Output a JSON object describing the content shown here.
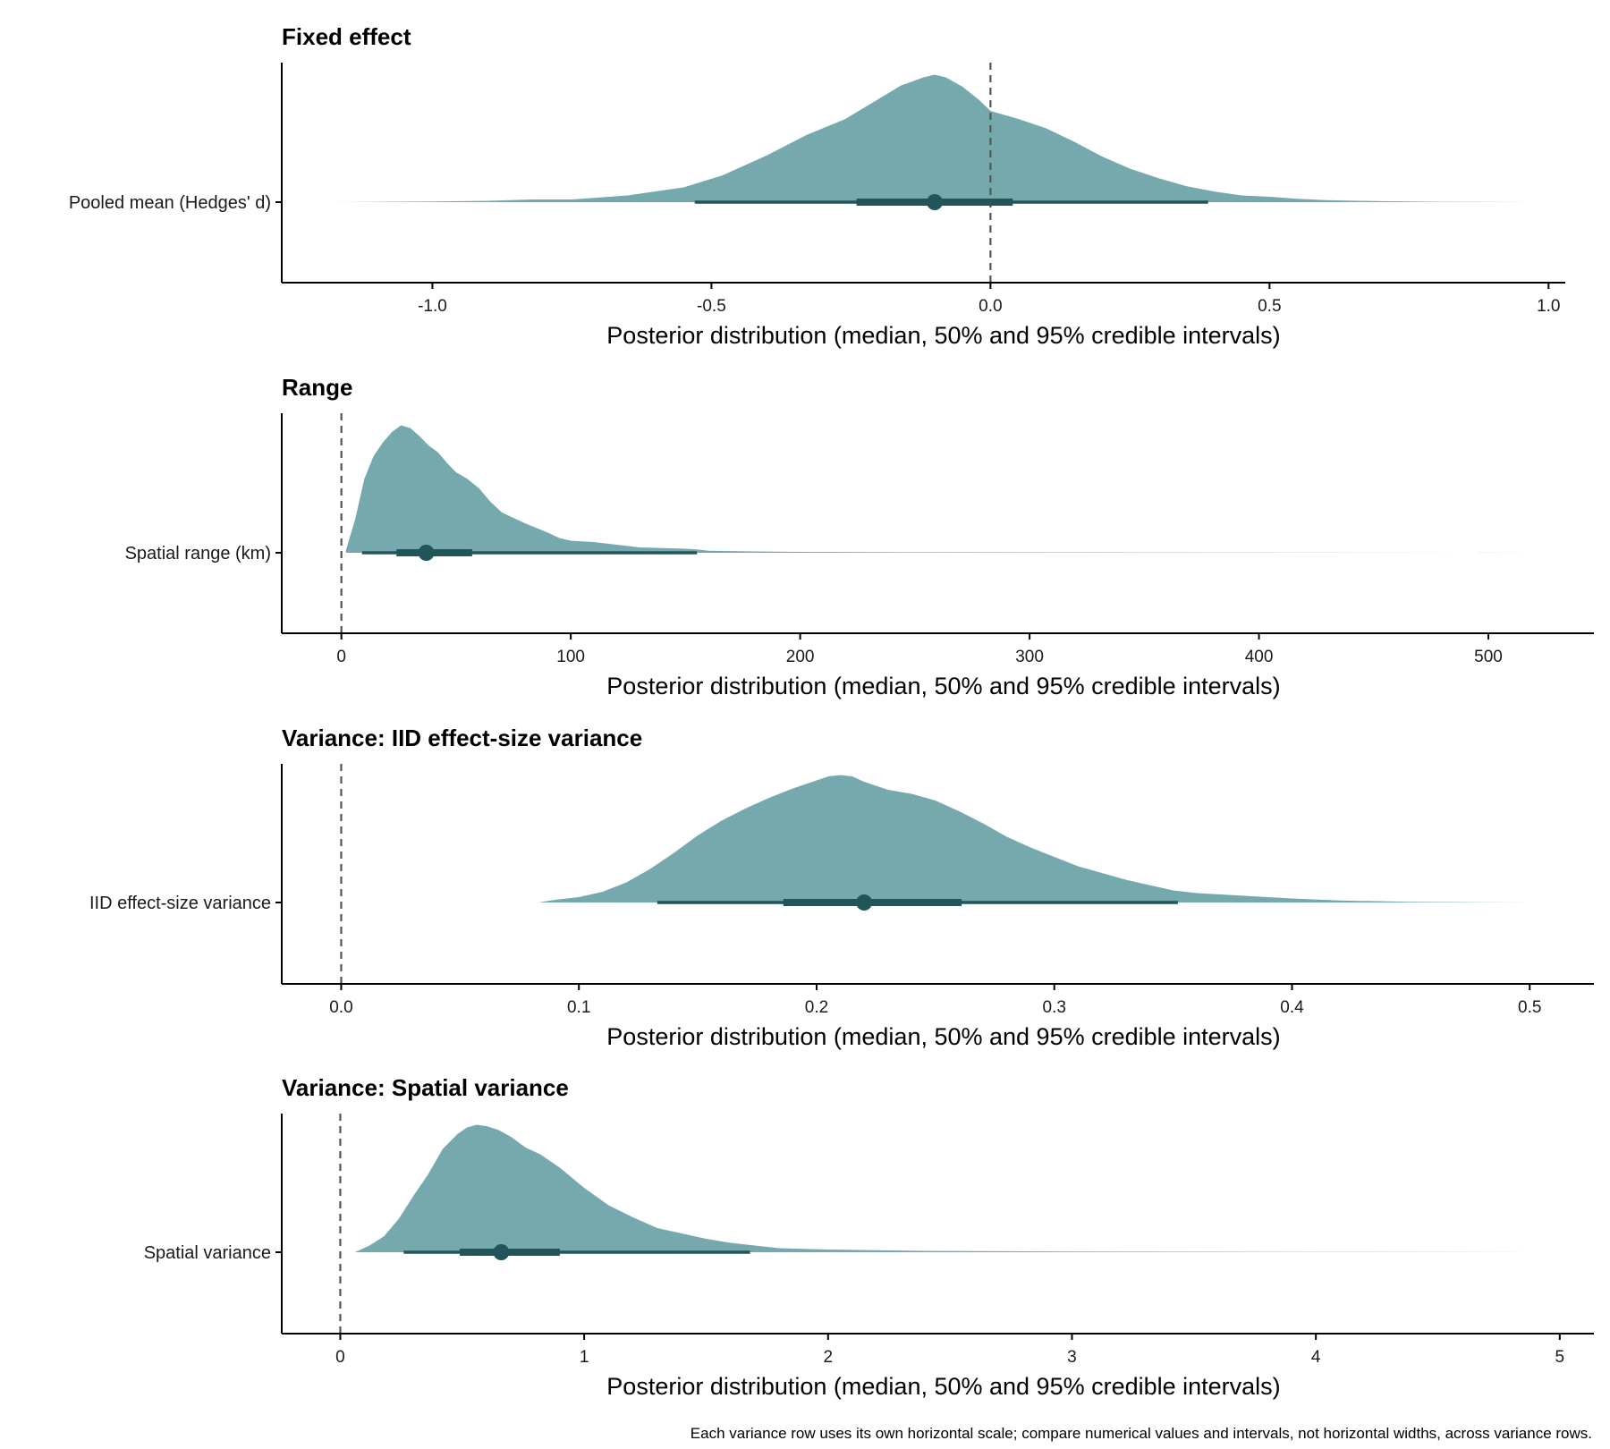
{
  "colors": {
    "density_fill": "#76a9ae",
    "interval": "#21555a",
    "reference_line": "#555555",
    "axis": "#000000"
  },
  "caption": "Each variance row uses its own horizontal scale; compare numerical values and intervals, not horizontal widths, across variance rows.",
  "chart_data": [
    {
      "type": "density",
      "title": "Fixed effect",
      "row_label": "Pooled mean (Hedges' d)",
      "xlabel": "Posterior distribution (median, 50% and 95% credible intervals)",
      "xlim": [
        -1.27,
        1.03
      ],
      "ticks": [
        -1.0,
        -0.5,
        0.0,
        0.5,
        1.0
      ],
      "tick_labels": [
        "-1.0",
        "-0.5",
        "0.0",
        "0.5",
        "1.0"
      ],
      "reference_x": 0.0,
      "median": -0.1,
      "ci50": [
        -0.24,
        0.04
      ],
      "ci95": [
        -0.53,
        0.39
      ],
      "density": {
        "x": [
          -1.18,
          -1.0,
          -0.9,
          -0.82,
          -0.75,
          -0.65,
          -0.55,
          -0.48,
          -0.4,
          -0.33,
          -0.26,
          -0.2,
          -0.16,
          -0.12,
          -0.1,
          -0.08,
          -0.05,
          -0.02,
          0.0,
          0.05,
          0.1,
          0.15,
          0.2,
          0.25,
          0.3,
          0.35,
          0.4,
          0.45,
          0.5,
          0.55,
          0.6,
          0.7,
          0.8,
          0.97
        ],
        "y": [
          0.0,
          0.005,
          0.01,
          0.02,
          0.02,
          0.05,
          0.11,
          0.2,
          0.35,
          0.5,
          0.62,
          0.77,
          0.87,
          0.93,
          0.95,
          0.93,
          0.86,
          0.76,
          0.68,
          0.62,
          0.55,
          0.45,
          0.34,
          0.25,
          0.18,
          0.12,
          0.08,
          0.05,
          0.04,
          0.025,
          0.015,
          0.007,
          0.003,
          0.0
        ]
      }
    },
    {
      "type": "density",
      "title": "Range",
      "row_label": "Spatial range (km)",
      "xlabel": "Posterior distribution (median, 50% and 95% credible intervals)",
      "xlim": [
        -26,
        546
      ],
      "ticks": [
        0,
        100,
        200,
        300,
        400,
        500
      ],
      "tick_labels": [
        "0",
        "100",
        "200",
        "300",
        "400",
        "500"
      ],
      "reference_x": 0,
      "median": 37,
      "ci50": [
        24,
        57
      ],
      "ci95": [
        9,
        155
      ],
      "density": {
        "x": [
          2,
          6,
          10,
          14,
          18,
          22,
          26,
          30,
          34,
          38,
          42,
          46,
          50,
          55,
          60,
          65,
          70,
          80,
          90,
          95,
          100,
          110,
          120,
          130,
          150,
          155,
          160,
          180,
          200,
          250,
          300,
          400,
          520
        ],
        "y": [
          0.02,
          0.25,
          0.55,
          0.72,
          0.82,
          0.9,
          0.95,
          0.93,
          0.87,
          0.8,
          0.75,
          0.67,
          0.6,
          0.55,
          0.48,
          0.38,
          0.3,
          0.22,
          0.15,
          0.11,
          0.09,
          0.08,
          0.06,
          0.04,
          0.03,
          0.025,
          0.015,
          0.01,
          0.007,
          0.004,
          0.003,
          0.002,
          0.0
        ]
      }
    },
    {
      "type": "density",
      "title": "Variance: IID effect-size variance",
      "row_label": "IID effect-size variance",
      "xlabel": "Posterior distribution (median, 50% and 95% credible intervals)",
      "xlim": [
        -0.025,
        0.527
      ],
      "ticks": [
        0.0,
        0.1,
        0.2,
        0.3,
        0.4,
        0.5
      ],
      "tick_labels": [
        "0.0",
        "0.1",
        "0.2",
        "0.3",
        "0.4",
        "0.5"
      ],
      "reference_x": 0.0,
      "median": 0.22,
      "ci50": [
        0.186,
        0.261
      ],
      "ci95": [
        0.133,
        0.352
      ],
      "density": {
        "x": [
          0.083,
          0.09,
          0.1,
          0.11,
          0.12,
          0.13,
          0.14,
          0.15,
          0.16,
          0.17,
          0.18,
          0.19,
          0.2,
          0.205,
          0.21,
          0.215,
          0.22,
          0.23,
          0.24,
          0.25,
          0.26,
          0.27,
          0.28,
          0.29,
          0.3,
          0.31,
          0.32,
          0.33,
          0.34,
          0.35,
          0.36,
          0.38,
          0.4,
          0.42,
          0.45,
          0.5
        ],
        "y": [
          0.0,
          0.02,
          0.04,
          0.08,
          0.15,
          0.25,
          0.37,
          0.5,
          0.61,
          0.7,
          0.78,
          0.85,
          0.91,
          0.94,
          0.95,
          0.94,
          0.9,
          0.84,
          0.81,
          0.76,
          0.68,
          0.59,
          0.49,
          0.41,
          0.34,
          0.27,
          0.22,
          0.17,
          0.13,
          0.09,
          0.07,
          0.05,
          0.03,
          0.015,
          0.005,
          0.0
        ]
      }
    },
    {
      "type": "density",
      "title": "Variance: Spatial variance",
      "row_label": "Spatial variance",
      "xlabel": "Posterior distribution (median, 50% and 95% credible intervals)",
      "xlim": [
        -0.24,
        5.14
      ],
      "ticks": [
        0,
        1,
        2,
        3,
        4,
        5
      ],
      "tick_labels": [
        "0",
        "1",
        "2",
        "3",
        "4",
        "5"
      ],
      "reference_x": 0,
      "median": 0.66,
      "ci50": [
        0.49,
        0.9
      ],
      "ci95": [
        0.26,
        1.68
      ],
      "density": {
        "x": [
          0.06,
          0.12,
          0.18,
          0.24,
          0.3,
          0.36,
          0.42,
          0.48,
          0.52,
          0.56,
          0.6,
          0.65,
          0.7,
          0.76,
          0.82,
          0.9,
          1.0,
          1.1,
          1.2,
          1.3,
          1.4,
          1.5,
          1.6,
          1.7,
          1.8,
          2.0,
          2.4,
          3.0,
          4.0,
          4.9
        ],
        "y": [
          0.0,
          0.05,
          0.12,
          0.25,
          0.42,
          0.58,
          0.77,
          0.88,
          0.93,
          0.95,
          0.94,
          0.91,
          0.86,
          0.78,
          0.73,
          0.63,
          0.48,
          0.35,
          0.26,
          0.18,
          0.14,
          0.1,
          0.07,
          0.05,
          0.03,
          0.02,
          0.01,
          0.005,
          0.002,
          0.0
        ]
      }
    }
  ]
}
